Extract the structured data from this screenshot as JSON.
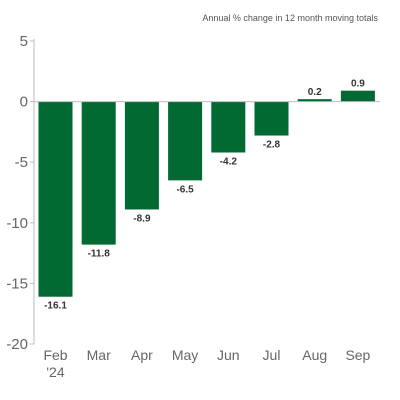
{
  "chart_data": {
    "type": "bar",
    "title": "Annual % change in 12 month moving totals",
    "categories": [
      "Feb '24",
      "Mar",
      "Apr",
      "May",
      "Jun",
      "Jul",
      "Aug",
      "Sep"
    ],
    "x_tick_labels": [
      [
        "Feb",
        "'24"
      ],
      [
        "Mar"
      ],
      [
        "Apr"
      ],
      [
        "May"
      ],
      [
        "Jun"
      ],
      [
        "Jul"
      ],
      [
        "Aug"
      ],
      [
        "Sep"
      ]
    ],
    "values": [
      -16.1,
      -11.8,
      -8.9,
      -6.5,
      -4.2,
      -2.8,
      0.2,
      0.9
    ],
    "data_labels": [
      "-16.1",
      "-11.8",
      "-8.9",
      "-6.5",
      "-4.2",
      "-2.8",
      "0.2",
      "0.9"
    ],
    "ylim": [
      -20,
      5
    ],
    "yticks": [
      5,
      0,
      -5,
      -10,
      -15,
      -20
    ],
    "ytick_labels": [
      "5",
      "0",
      "-5",
      "-10",
      "-15",
      "-20"
    ],
    "xlabel": "",
    "ylabel": "",
    "grid": false,
    "bar_color": "#006a32",
    "axis_color": "#bbbbbb"
  }
}
